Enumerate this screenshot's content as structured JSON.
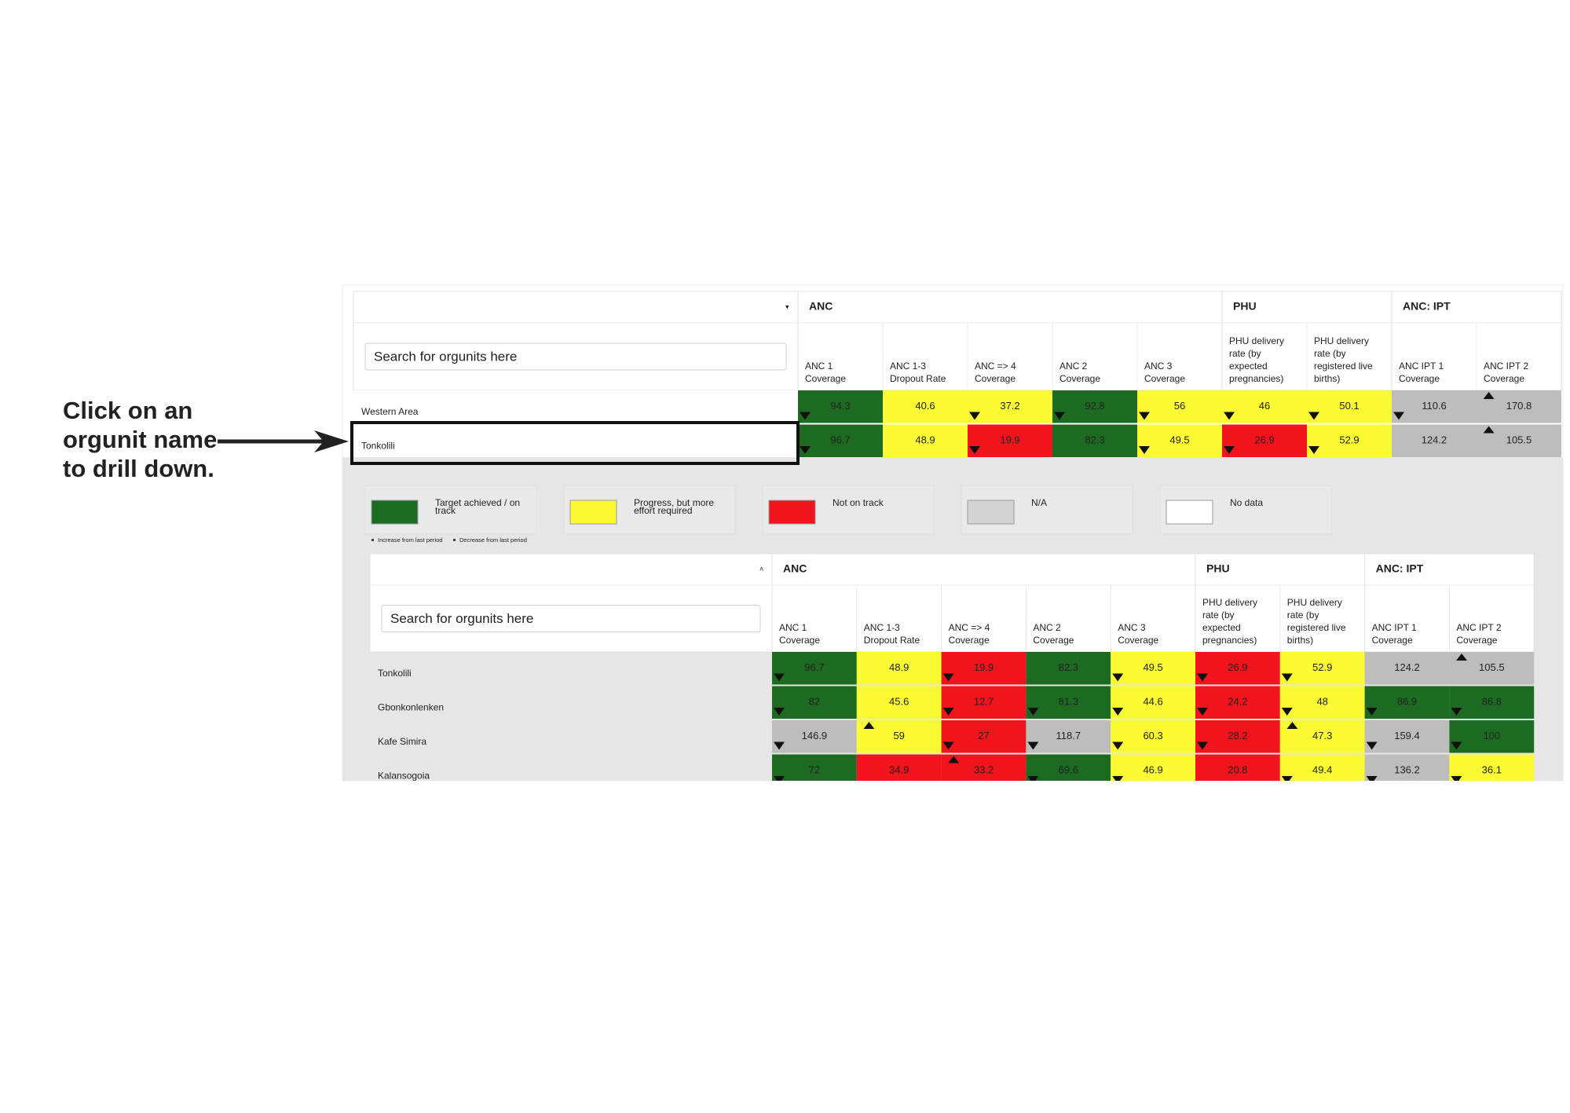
{
  "annotation": {
    "lines": [
      "Click on an",
      "orgunit name",
      "to drill down."
    ]
  },
  "tables": [
    {
      "search_placeholder": "Search for orgunits here",
      "groups": [
        {
          "name": "ANC",
          "columns": [
            [
              "ANC 1",
              "Coverage"
            ],
            [
              "ANC 1-3",
              "Dropout Rate"
            ],
            [
              "ANC => 4",
              "Coverage"
            ],
            [
              "ANC 2",
              "Coverage"
            ],
            [
              "ANC 3",
              "Coverage"
            ]
          ]
        },
        {
          "name": "PHU",
          "columns": [
            [
              "PHU delivery",
              "rate (by",
              "expected",
              "pregnancies)"
            ],
            [
              "PHU delivery",
              "rate (by",
              "registered live",
              "births)"
            ]
          ]
        },
        {
          "name": "ANC: IPT",
          "columns": [
            [
              "ANC IPT 1",
              "Coverage"
            ],
            [
              "ANC IPT 2",
              "Coverage"
            ]
          ]
        }
      ],
      "rows": [
        {
          "name": "Western Area",
          "cells": [
            {
              "value": 94.3,
              "color": "#1d6b22",
              "trend": "down"
            },
            {
              "value": 40.6,
              "color": "#fbfb33"
            },
            {
              "value": 37.2,
              "color": "#fbfb33",
              "trend": "down"
            },
            {
              "value": 92.8,
              "color": "#1d6b22",
              "trend": "down"
            },
            {
              "value": 56,
              "color": "#fbfb33",
              "trend": "down"
            },
            {
              "value": 46,
              "color": "#fbfb33",
              "trend": "down"
            },
            {
              "value": 50.1,
              "color": "#fbfb33",
              "trend": "down"
            },
            {
              "value": 110.6,
              "color": "#bdbdbd",
              "trend": "down"
            },
            {
              "value": 170.8,
              "color": "#bdbdbd",
              "trend": "up"
            }
          ]
        },
        {
          "name": "Tonkolili",
          "cells": [
            {
              "value": 96.7,
              "color": "#1d6b22",
              "trend": "down"
            },
            {
              "value": 48.9,
              "color": "#fbfb33"
            },
            {
              "value": 19.9,
              "color": "#f2141d",
              "trend": "down"
            },
            {
              "value": 82.3,
              "color": "#1d6b22"
            },
            {
              "value": 49.5,
              "color": "#fbfb33",
              "trend": "down"
            },
            {
              "value": 26.9,
              "color": "#f2141d",
              "trend": "down"
            },
            {
              "value": 52.9,
              "color": "#fbfb33",
              "trend": "down"
            },
            {
              "value": 124.2,
              "color": "#bdbdbd"
            },
            {
              "value": 105.5,
              "color": "#bdbdbd",
              "trend": "up"
            }
          ]
        }
      ]
    },
    {
      "search_placeholder": "Search for orgunits here",
      "groups": [
        {
          "name": "ANC",
          "columns": [
            [
              "ANC 1",
              "Coverage"
            ],
            [
              "ANC 1-3",
              "Dropout Rate"
            ],
            [
              "ANC => 4",
              "Coverage"
            ],
            [
              "ANC 2",
              "Coverage"
            ],
            [
              "ANC 3",
              "Coverage"
            ]
          ]
        },
        {
          "name": "PHU",
          "columns": [
            [
              "PHU delivery",
              "rate (by",
              "expected",
              "pregnancies)"
            ],
            [
              "PHU delivery",
              "rate (by",
              "registered live",
              "births)"
            ]
          ]
        },
        {
          "name": "ANC: IPT",
          "columns": [
            [
              "ANC IPT 1",
              "Coverage"
            ],
            [
              "ANC IPT 2",
              "Coverage"
            ]
          ]
        }
      ],
      "rows": [
        {
          "name": "Tonkolili",
          "cells": [
            {
              "value": 96.7,
              "color": "#1d6b22",
              "trend": "down"
            },
            {
              "value": 48.9,
              "color": "#fbfb33"
            },
            {
              "value": 19.9,
              "color": "#f2141d",
              "trend": "down"
            },
            {
              "value": 82.3,
              "color": "#1d6b22"
            },
            {
              "value": 49.5,
              "color": "#fbfb33",
              "trend": "down"
            },
            {
              "value": 26.9,
              "color": "#f2141d",
              "trend": "down"
            },
            {
              "value": 52.9,
              "color": "#fbfb33",
              "trend": "down"
            },
            {
              "value": 124.2,
              "color": "#bdbdbd"
            },
            {
              "value": 105.5,
              "color": "#bdbdbd",
              "trend": "up"
            }
          ]
        },
        {
          "name": "Gbonkonlenken",
          "cells": [
            {
              "value": 82,
              "color": "#1d6b22",
              "trend": "down"
            },
            {
              "value": 45.6,
              "color": "#fbfb33"
            },
            {
              "value": 12.7,
              "color": "#f2141d",
              "trend": "down"
            },
            {
              "value": 81.3,
              "color": "#1d6b22",
              "trend": "down"
            },
            {
              "value": 44.6,
              "color": "#fbfb33",
              "trend": "down"
            },
            {
              "value": 24.2,
              "color": "#f2141d",
              "trend": "down"
            },
            {
              "value": 48,
              "color": "#fbfb33",
              "trend": "down"
            },
            {
              "value": 86.9,
              "color": "#1d6b22",
              "trend": "down"
            },
            {
              "value": 86.8,
              "color": "#1d6b22",
              "trend": "down"
            }
          ]
        },
        {
          "name": "Kafe Simira",
          "cells": [
            {
              "value": 146.9,
              "color": "#bdbdbd",
              "trend": "down"
            },
            {
              "value": 59,
              "color": "#fbfb33",
              "trend": "up"
            },
            {
              "value": 27,
              "color": "#f2141d",
              "trend": "down"
            },
            {
              "value": 118.7,
              "color": "#bdbdbd",
              "trend": "down"
            },
            {
              "value": 60.3,
              "color": "#fbfb33",
              "trend": "down"
            },
            {
              "value": 28.2,
              "color": "#f2141d",
              "trend": "down"
            },
            {
              "value": 47.3,
              "color": "#fbfb33",
              "trend": "up"
            },
            {
              "value": 159.4,
              "color": "#bdbdbd",
              "trend": "down"
            },
            {
              "value": 100,
              "color": "#1d6b22",
              "trend": "down"
            }
          ]
        },
        {
          "name": "Kalansogoia",
          "cells": [
            {
              "value": 72,
              "color": "#1d6b22",
              "trend": "down"
            },
            {
              "value": 34.9,
              "color": "#f2141d"
            },
            {
              "value": 33.2,
              "color": "#f2141d",
              "trend": "up"
            },
            {
              "value": 69.6,
              "color": "#1d6b22",
              "trend": "down"
            },
            {
              "value": 46.9,
              "color": "#fbfb33",
              "trend": "down"
            },
            {
              "value": 20.8,
              "color": "#f2141d"
            },
            {
              "value": 49.4,
              "color": "#fbfb33",
              "trend": "down"
            },
            {
              "value": 136.2,
              "color": "#bdbdbd",
              "trend": "down"
            },
            {
              "value": 36.1,
              "color": "#fbfb33",
              "trend": "down"
            }
          ]
        }
      ]
    }
  ],
  "legend": {
    "items": [
      {
        "label": [
          "Target achieved / on",
          "track"
        ],
        "color": "#1d6b22"
      },
      {
        "label": [
          "Progress, but more",
          "effort required"
        ],
        "color": "#fbfb33"
      },
      {
        "label": [
          "Not on track"
        ],
        "color": "#f2141d"
      },
      {
        "label": [
          "N/A"
        ],
        "color": "#d3d3d3"
      },
      {
        "label": [
          "No data"
        ],
        "color": "#ffffff"
      }
    ],
    "trend_note": [
      "Increase from last period",
      "Decrease from last period"
    ]
  }
}
